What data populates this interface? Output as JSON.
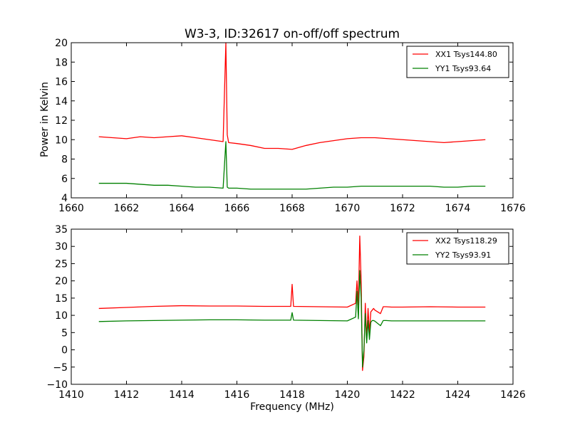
{
  "chart_data": [
    {
      "type": "line",
      "title": "W3-3, ID:32617 on-off/off spectrum",
      "xlabel": "",
      "ylabel": "Power in Kelvin",
      "xlim": [
        1660,
        1676
      ],
      "ylim": [
        4,
        20
      ],
      "xticks": [
        "1660",
        "1662",
        "1664",
        "1666",
        "1668",
        "1670",
        "1672",
        "1674",
        "1676"
      ],
      "yticks": [
        "4",
        "6",
        "8",
        "10",
        "12",
        "14",
        "16",
        "18",
        "20"
      ],
      "grid": false,
      "legend": "top-right",
      "series": [
        {
          "name": "XX1 Tsys144.80",
          "color": "#ff0000",
          "x": [
            1661.0,
            1661.5,
            1662.0,
            1662.5,
            1663.0,
            1663.5,
            1664.0,
            1664.5,
            1665.0,
            1665.5,
            1665.6,
            1665.65,
            1665.7,
            1666.0,
            1666.5,
            1667.0,
            1667.5,
            1668.0,
            1668.5,
            1669.0,
            1669.5,
            1670.0,
            1670.5,
            1671.0,
            1671.5,
            1672.0,
            1672.5,
            1673.0,
            1673.5,
            1674.0,
            1674.5,
            1675.0
          ],
          "y": [
            10.3,
            10.2,
            10.1,
            10.3,
            10.2,
            10.3,
            10.4,
            10.2,
            10.0,
            9.8,
            20.0,
            10.5,
            9.7,
            9.6,
            9.4,
            9.1,
            9.1,
            9.0,
            9.4,
            9.7,
            9.9,
            10.1,
            10.2,
            10.2,
            10.1,
            10.0,
            9.9,
            9.8,
            9.7,
            9.8,
            9.9,
            10.0
          ]
        },
        {
          "name": "YY1 Tsys93.64",
          "color": "#008000",
          "x": [
            1661.0,
            1661.5,
            1662.0,
            1662.5,
            1663.0,
            1663.5,
            1664.0,
            1664.5,
            1665.0,
            1665.5,
            1665.6,
            1665.65,
            1665.7,
            1666.0,
            1666.5,
            1667.0,
            1667.5,
            1668.0,
            1668.5,
            1669.0,
            1669.5,
            1670.0,
            1670.5,
            1671.0,
            1671.5,
            1672.0,
            1672.5,
            1673.0,
            1673.5,
            1674.0,
            1674.5,
            1675.0
          ],
          "y": [
            5.5,
            5.5,
            5.5,
            5.4,
            5.3,
            5.3,
            5.2,
            5.1,
            5.1,
            5.0,
            9.8,
            5.1,
            5.0,
            5.0,
            4.9,
            4.9,
            4.9,
            4.9,
            4.9,
            5.0,
            5.1,
            5.1,
            5.2,
            5.2,
            5.2,
            5.2,
            5.2,
            5.2,
            5.1,
            5.1,
            5.2,
            5.2
          ]
        }
      ]
    },
    {
      "type": "line",
      "title": "",
      "xlabel": "Frequency (MHz)",
      "ylabel": "",
      "xlim": [
        1410,
        1426
      ],
      "ylim": [
        -10,
        35
      ],
      "xticks": [
        "1410",
        "1412",
        "1414",
        "1416",
        "1418",
        "1420",
        "1422",
        "1424",
        "1426"
      ],
      "yticks": [
        "−10",
        "−5",
        "0",
        "5",
        "10",
        "15",
        "20",
        "25",
        "30",
        "35"
      ],
      "grid": false,
      "legend": "top-right",
      "series": [
        {
          "name": "XX2 Tsys118.29",
          "color": "#ff0000",
          "x": [
            1411.0,
            1412.0,
            1413.0,
            1414.0,
            1415.0,
            1416.0,
            1417.0,
            1417.95,
            1418.0,
            1418.05,
            1419.0,
            1420.0,
            1420.3,
            1420.35,
            1420.4,
            1420.45,
            1420.5,
            1420.55,
            1420.6,
            1420.65,
            1420.7,
            1420.75,
            1420.8,
            1420.85,
            1420.9,
            1420.95,
            1421.0,
            1421.2,
            1421.3,
            1421.4,
            1421.6,
            1422.0,
            1423.0,
            1424.0,
            1425.0
          ],
          "y": [
            12.0,
            12.3,
            12.6,
            12.8,
            12.7,
            12.7,
            12.6,
            12.6,
            19.0,
            12.6,
            12.5,
            12.4,
            13.5,
            20.0,
            13.0,
            33.0,
            20.0,
            -6.0,
            -2.0,
            13.5,
            3.0,
            12.0,
            5.0,
            11.0,
            11.5,
            12.0,
            11.5,
            10.5,
            12.5,
            12.5,
            12.4,
            12.4,
            12.5,
            12.4,
            12.4
          ]
        },
        {
          "name": "YY2 Tsys93.91",
          "color": "#008000",
          "x": [
            1411.0,
            1412.0,
            1413.0,
            1414.0,
            1415.0,
            1416.0,
            1417.0,
            1417.95,
            1418.0,
            1418.05,
            1419.0,
            1420.0,
            1420.3,
            1420.35,
            1420.4,
            1420.45,
            1420.5,
            1420.55,
            1420.6,
            1420.65,
            1420.7,
            1420.75,
            1420.8,
            1420.85,
            1420.9,
            1420.95,
            1421.0,
            1421.2,
            1421.3,
            1421.4,
            1421.6,
            1422.0,
            1423.0,
            1424.0,
            1425.0
          ],
          "y": [
            8.2,
            8.4,
            8.5,
            8.6,
            8.7,
            8.7,
            8.6,
            8.6,
            10.8,
            8.6,
            8.5,
            8.4,
            9.5,
            17.0,
            9.0,
            23.0,
            15.0,
            -5.0,
            0.0,
            10.5,
            2.0,
            8.5,
            3.0,
            8.0,
            8.5,
            8.5,
            8.3,
            7.0,
            8.5,
            8.5,
            8.4,
            8.4,
            8.4,
            8.4,
            8.4
          ]
        }
      ]
    }
  ]
}
